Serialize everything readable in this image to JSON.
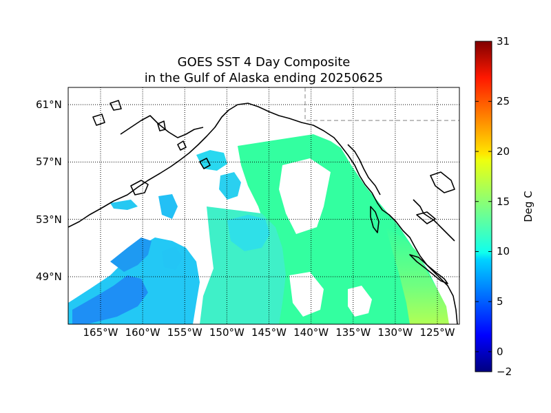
{
  "title": {
    "line1": "GOES SST 4 Day Composite",
    "line2": "in the Gulf of Alaska ending 20250625"
  },
  "axes": {
    "lat_labels": [
      "61°N",
      "57°N",
      "53°N",
      "49°N"
    ],
    "lat_values": [
      61,
      57,
      53,
      49
    ],
    "lon_labels": [
      "165°W",
      "160°W",
      "155°W",
      "150°W",
      "145°W",
      "140°W",
      "135°W",
      "130°W",
      "125°W"
    ],
    "lon_values": [
      -165,
      -160,
      -155,
      -150,
      -145,
      -140,
      -135,
      -130,
      -125
    ]
  },
  "colorbar": {
    "label": "Deg C",
    "min": -2,
    "max": 31,
    "ticks": [
      "31",
      "25",
      "20",
      "15",
      "10",
      "5",
      "0",
      "−2"
    ],
    "tick_values": [
      31,
      25,
      20,
      15,
      10,
      5,
      0,
      -2
    ],
    "colormap": "jet"
  },
  "colors": {
    "land_outline": "#000000",
    "ocean_no_data": "#ffffff",
    "sst_open_ocean": "#33ffa0",
    "sst_cool": "#23c8f5",
    "sst_cold": "#1e8ff5",
    "sst_warm_coast": "#a5ff5a"
  }
}
